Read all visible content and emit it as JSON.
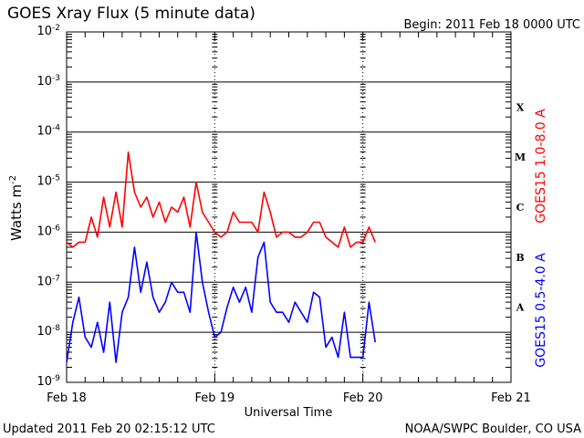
{
  "chart_data": {
    "type": "line",
    "title": "GOES Xray Flux (5 minute data)",
    "begin_label": "Begin:  2011 Feb 18 0000 UTC",
    "xlabel": "Universal Time",
    "ylabel": "Watts m",
    "ylabel_sup": "-2",
    "yscale": "log",
    "ylim_log10": [
      -9,
      -2
    ],
    "y_ticks": [
      {
        "base": "10",
        "exp": "-2"
      },
      {
        "base": "10",
        "exp": "-3"
      },
      {
        "base": "10",
        "exp": "-4"
      },
      {
        "base": "10",
        "exp": "-5"
      },
      {
        "base": "10",
        "exp": "-6"
      },
      {
        "base": "10",
        "exp": "-7"
      },
      {
        "base": "10",
        "exp": "-8"
      },
      {
        "base": "10",
        "exp": "-9"
      }
    ],
    "x_ticks": [
      "Feb 18",
      "Feb 19",
      "Feb 20",
      "Feb 21"
    ],
    "x_range_hours": [
      0,
      72
    ],
    "x_step_hours": 1,
    "flare_classes": [
      "X",
      "M",
      "C",
      "B",
      "A"
    ],
    "grid": true,
    "series": [
      {
        "name": "GOES15 1.0-8.0 A",
        "color": "#ff0000",
        "log10_values": [
          -6.2,
          -6.3,
          -6.2,
          -6.2,
          -5.7,
          -6.1,
          -5.3,
          -5.9,
          -5.2,
          -5.9,
          -4.4,
          -5.2,
          -5.5,
          -5.3,
          -5.7,
          -5.4,
          -5.8,
          -5.5,
          -5.6,
          -5.3,
          -5.9,
          -5.0,
          -5.6,
          -5.8,
          -6.0,
          -6.1,
          -6.0,
          -5.6,
          -5.8,
          -5.8,
          -5.8,
          -6.0,
          -5.2,
          -5.6,
          -6.1,
          -6.0,
          -6.0,
          -6.1,
          -6.1,
          -6.0,
          -5.8,
          -5.8,
          -6.1,
          -6.2,
          -6.3,
          -5.9,
          -6.3,
          -6.2,
          -6.2,
          -5.9,
          -6.2
        ]
      },
      {
        "name": "GOES15 0.5-4.0 A",
        "color": "#0000ff",
        "log10_values": [
          -8.6,
          -7.8,
          -7.3,
          -8.1,
          -8.3,
          -7.8,
          -8.4,
          -7.4,
          -8.6,
          -7.6,
          -7.3,
          -6.3,
          -7.2,
          -6.6,
          -7.3,
          -7.6,
          -7.4,
          -7.0,
          -7.2,
          -7.2,
          -7.6,
          -6.0,
          -7.0,
          -7.6,
          -8.1,
          -8.0,
          -7.5,
          -7.1,
          -7.4,
          -7.1,
          -7.6,
          -6.5,
          -6.2,
          -7.4,
          -7.6,
          -7.6,
          -7.8,
          -7.4,
          -7.6,
          -7.8,
          -7.2,
          -7.3,
          -8.3,
          -8.1,
          -8.5,
          -7.6,
          -8.5,
          -8.5,
          -8.5,
          -7.4,
          -8.2
        ]
      }
    ]
  },
  "footer": {
    "updated": "Updated 2011 Feb 20 02:15:12 UTC",
    "credit": "NOAA/SWPC Boulder, CO USA"
  }
}
